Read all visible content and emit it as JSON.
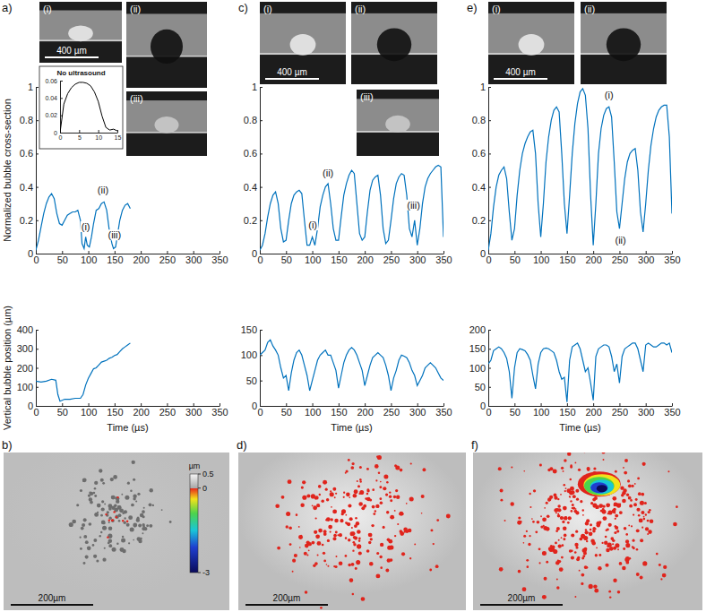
{
  "chart_data": [
    {
      "type": "line",
      "panel": "a)",
      "y_label": "Normalized bubble cross-section",
      "x": [
        0,
        5,
        10,
        15,
        20,
        25,
        30,
        35,
        40,
        45,
        50,
        55,
        60,
        65,
        70,
        75,
        80,
        85,
        88,
        92,
        95,
        98,
        102,
        106,
        110,
        115,
        120,
        125,
        130,
        135,
        140,
        145,
        148,
        152,
        156,
        160,
        165,
        170,
        175,
        180
      ],
      "series": [
        {
          "color": "#0072bd",
          "values": [
            0.02,
            0.08,
            0.16,
            0.24,
            0.3,
            0.34,
            0.36,
            0.33,
            0.24,
            0.18,
            0.17,
            0.2,
            0.23,
            0.24,
            0.25,
            0.25,
            0.26,
            0.2,
            0.06,
            0.03,
            0.1,
            0.05,
            0.04,
            0.1,
            0.18,
            0.26,
            0.27,
            0.3,
            0.31,
            0.26,
            0.14,
            0.06,
            0.03,
            0.04,
            0.12,
            0.2,
            0.26,
            0.29,
            0.3,
            0.27
          ]
        }
      ],
      "xlim": [
        0,
        350
      ],
      "xticks": [
        0,
        50,
        100,
        150,
        200,
        250,
        300,
        350
      ],
      "ylim": [
        0,
        1
      ],
      "yticks": [
        0,
        0.2,
        0.4,
        0.6,
        0.8,
        1
      ],
      "annotations": [
        {
          "text": "(i)",
          "x": 95,
          "y": 0.14
        },
        {
          "text": "(ii)",
          "x": 128,
          "y": 0.36
        },
        {
          "text": "(iii)",
          "x": 150,
          "y": 0.09
        }
      ]
    },
    {
      "type": "line",
      "y_label": "Vertical bubble position (µm)",
      "x_label": "Time (µs)",
      "x": [
        0,
        10,
        20,
        30,
        38,
        42,
        46,
        55,
        65,
        75,
        85,
        90,
        95,
        100,
        105,
        110,
        115,
        120,
        125,
        130,
        135,
        140,
        145,
        150,
        155,
        160,
        165,
        170,
        175,
        180
      ],
      "series": [
        {
          "color": "#0072bd",
          "values": [
            130,
            125,
            130,
            140,
            135,
            60,
            25,
            35,
            35,
            40,
            40,
            60,
            110,
            145,
            170,
            195,
            200,
            215,
            230,
            235,
            240,
            250,
            255,
            265,
            270,
            285,
            300,
            310,
            320,
            330
          ]
        }
      ],
      "xlim": [
        0,
        350
      ],
      "xticks": [
        0,
        50,
        100,
        150,
        200,
        250,
        300,
        350
      ],
      "ylim": [
        0,
        400
      ],
      "yticks": [
        0,
        100,
        200,
        300,
        400
      ]
    },
    {
      "type": "line",
      "panel": "c)",
      "x": [
        0,
        5,
        10,
        15,
        20,
        25,
        30,
        35,
        40,
        45,
        50,
        55,
        60,
        65,
        70,
        75,
        80,
        85,
        90,
        95,
        100,
        105,
        110,
        115,
        120,
        125,
        130,
        135,
        140,
        145,
        150,
        155,
        160,
        165,
        170,
        175,
        180,
        185,
        190,
        195,
        200,
        205,
        210,
        215,
        220,
        225,
        230,
        235,
        240,
        245,
        250,
        255,
        260,
        265,
        270,
        275,
        280,
        285,
        290,
        295,
        300,
        305,
        310,
        315,
        320,
        325,
        330,
        335,
        340,
        345,
        350
      ],
      "series": [
        {
          "color": "#0072bd",
          "values": [
            0.02,
            0.05,
            0.12,
            0.22,
            0.3,
            0.35,
            0.37,
            0.3,
            0.15,
            0.07,
            0.08,
            0.2,
            0.3,
            0.35,
            0.37,
            0.38,
            0.36,
            0.2,
            0.05,
            0.05,
            0.1,
            0.05,
            0.15,
            0.28,
            0.35,
            0.4,
            0.42,
            0.3,
            0.15,
            0.08,
            0.08,
            0.22,
            0.35,
            0.42,
            0.47,
            0.5,
            0.48,
            0.3,
            0.12,
            0.08,
            0.1,
            0.25,
            0.38,
            0.44,
            0.46,
            0.47,
            0.35,
            0.15,
            0.06,
            0.08,
            0.2,
            0.33,
            0.42,
            0.46,
            0.48,
            0.47,
            0.35,
            0.15,
            0.1,
            0.2,
            0.05,
            0.15,
            0.3,
            0.4,
            0.45,
            0.48,
            0.5,
            0.52,
            0.53,
            0.52,
            0.1
          ]
        }
      ],
      "xlim": [
        0,
        350
      ],
      "xticks": [
        0,
        50,
        100,
        150,
        200,
        250,
        300,
        350
      ],
      "ylim": [
        0,
        1
      ],
      "yticks": [
        0,
        0.2,
        0.4,
        0.6,
        0.8,
        1
      ],
      "annotations": [
        {
          "text": "(i)",
          "x": 101,
          "y": 0.15
        },
        {
          "text": "(ii)",
          "x": 130,
          "y": 0.46
        },
        {
          "text": "(iii)",
          "x": 293,
          "y": 0.27
        }
      ]
    },
    {
      "type": "line",
      "x_label": "Time (µs)",
      "x": [
        0,
        5,
        10,
        15,
        20,
        25,
        30,
        35,
        40,
        45,
        50,
        55,
        60,
        65,
        70,
        75,
        80,
        85,
        90,
        95,
        100,
        105,
        110,
        115,
        120,
        125,
        130,
        135,
        140,
        145,
        150,
        155,
        160,
        165,
        170,
        175,
        180,
        185,
        190,
        195,
        200,
        205,
        210,
        215,
        220,
        225,
        230,
        235,
        240,
        245,
        250,
        255,
        260,
        265,
        270,
        275,
        280,
        285,
        290,
        295,
        300,
        305,
        310,
        315,
        320,
        325,
        330,
        335,
        340,
        345,
        350
      ],
      "series": [
        {
          "color": "#0072bd",
          "values": [
            100,
            105,
            110,
            125,
            130,
            118,
            110,
            100,
            75,
            55,
            60,
            30,
            65,
            90,
            105,
            110,
            100,
            80,
            60,
            30,
            50,
            70,
            90,
            100,
            105,
            110,
            100,
            100,
            85,
            70,
            35,
            60,
            85,
            100,
            110,
            115,
            110,
            100,
            85,
            70,
            40,
            60,
            80,
            95,
            100,
            105,
            100,
            95,
            80,
            60,
            30,
            55,
            70,
            90,
            100,
            98,
            95,
            85,
            70,
            60,
            40,
            50,
            60,
            75,
            80,
            85,
            80,
            75,
            65,
            55,
            50
          ]
        }
      ],
      "xlim": [
        0,
        350
      ],
      "xticks": [
        0,
        50,
        100,
        150,
        200,
        250,
        300,
        350
      ],
      "ylim": [
        0,
        150
      ],
      "yticks": [
        0,
        50,
        100,
        150
      ]
    },
    {
      "type": "line",
      "panel": "e)",
      "x": [
        0,
        5,
        10,
        15,
        20,
        25,
        30,
        35,
        40,
        45,
        50,
        55,
        60,
        65,
        70,
        75,
        80,
        85,
        90,
        95,
        100,
        105,
        110,
        115,
        120,
        125,
        130,
        135,
        140,
        145,
        150,
        155,
        160,
        165,
        170,
        175,
        180,
        185,
        190,
        195,
        200,
        205,
        210,
        215,
        220,
        225,
        230,
        235,
        240,
        245,
        250,
        255,
        260,
        265,
        270,
        275,
        280,
        285,
        290,
        295,
        300,
        305,
        310,
        315,
        320,
        325,
        330,
        335,
        340,
        345,
        350
      ],
      "series": [
        {
          "color": "#0072bd",
          "values": [
            0.02,
            0.12,
            0.28,
            0.4,
            0.47,
            0.5,
            0.52,
            0.45,
            0.25,
            0.08,
            0.15,
            0.35,
            0.5,
            0.6,
            0.66,
            0.7,
            0.73,
            0.74,
            0.6,
            0.3,
            0.1,
            0.3,
            0.55,
            0.7,
            0.8,
            0.86,
            0.88,
            0.85,
            0.6,
            0.3,
            0.12,
            0.35,
            0.6,
            0.78,
            0.9,
            0.97,
            0.99,
            0.95,
            0.75,
            0.35,
            0.05,
            0.3,
            0.6,
            0.75,
            0.83,
            0.87,
            0.88,
            0.82,
            0.55,
            0.25,
            0.15,
            0.3,
            0.45,
            0.55,
            0.6,
            0.62,
            0.63,
            0.5,
            0.25,
            0.13,
            0.3,
            0.5,
            0.65,
            0.75,
            0.82,
            0.86,
            0.88,
            0.89,
            0.89,
            0.7,
            0.24
          ]
        }
      ],
      "xlim": [
        0,
        350
      ],
      "xticks": [
        0,
        50,
        100,
        150,
        200,
        250,
        300,
        350
      ],
      "ylim": [
        0,
        1
      ],
      "yticks": [
        0,
        0.2,
        0.4,
        0.6,
        0.8,
        1
      ],
      "annotations": [
        {
          "text": "(i)",
          "x": 230,
          "y": 0.93
        },
        {
          "text": "(ii)",
          "x": 252,
          "y": 0.06
        }
      ]
    },
    {
      "type": "line",
      "x_label": "Time (µs)",
      "x": [
        0,
        5,
        10,
        15,
        20,
        25,
        30,
        35,
        40,
        45,
        50,
        55,
        60,
        65,
        70,
        75,
        80,
        85,
        90,
        95,
        100,
        105,
        110,
        115,
        120,
        125,
        130,
        135,
        140,
        145,
        150,
        155,
        160,
        165,
        170,
        175,
        180,
        185,
        190,
        195,
        200,
        205,
        210,
        215,
        220,
        225,
        230,
        235,
        240,
        245,
        250,
        255,
        260,
        265,
        270,
        275,
        280,
        285,
        290,
        295,
        300,
        305,
        310,
        315,
        320,
        325,
        330,
        335,
        340,
        345,
        350
      ],
      "series": [
        {
          "color": "#0072bd",
          "values": [
            110,
            120,
            145,
            150,
            155,
            150,
            140,
            125,
            90,
            20,
            100,
            140,
            150,
            148,
            145,
            135,
            120,
            80,
            45,
            110,
            140,
            150,
            152,
            150,
            145,
            140,
            120,
            90,
            70,
            75,
            10,
            120,
            155,
            160,
            165,
            150,
            120,
            90,
            100,
            60,
            15,
            130,
            150,
            155,
            160,
            160,
            155,
            130,
            90,
            110,
            60,
            130,
            150,
            155,
            160,
            165,
            165,
            150,
            120,
            90,
            160,
            165,
            160,
            155,
            155,
            160,
            165,
            165,
            160,
            165,
            140
          ]
        }
      ],
      "xlim": [
        0,
        350
      ],
      "xticks": [
        0,
        50,
        100,
        150,
        200,
        250,
        300,
        350
      ],
      "ylim": [
        0,
        200
      ],
      "yticks": [
        0,
        50,
        100,
        150,
        200
      ]
    },
    {
      "type": "line",
      "title": "No ultrasound",
      "x": [
        0,
        1,
        2,
        3,
        4,
        5,
        6,
        7,
        8,
        9,
        10,
        11,
        12,
        13,
        14,
        15
      ],
      "series": [
        {
          "color": "#000000",
          "values": [
            0,
            0.033,
            0.045,
            0.052,
            0.056,
            0.058,
            0.058,
            0.057,
            0.054,
            0.047,
            0.036,
            0.019,
            0.006,
            0.003,
            0.004,
            0.002
          ]
        }
      ],
      "xlim": [
        0,
        15
      ],
      "xticks": [
        0,
        5,
        10,
        15
      ],
      "ylim": [
        0,
        0.06
      ],
      "yticks": [
        0,
        0.02,
        0.04,
        0.06
      ]
    }
  ],
  "photo_sets": [
    {
      "photos": [
        {
          "label": "(i)",
          "scale_bar": "400 µm"
        },
        {
          "label": "(ii)"
        },
        {
          "label": "(iii)"
        }
      ]
    },
    {
      "photos": [
        {
          "label": "(i)",
          "scale_bar": "400 µm"
        },
        {
          "label": "(ii)"
        },
        {
          "label": "(iii)"
        }
      ]
    },
    {
      "photos": [
        {
          "label": "(i)",
          "scale_bar": "400 µm"
        },
        {
          "label": "(ii)"
        }
      ]
    }
  ],
  "maps": [
    {
      "panel": "b)",
      "scale_bar": "200µm",
      "colorbar": {
        "unit": "µm",
        "range": [
          -3,
          0.5
        ],
        "ticks": [
          0.5,
          0,
          -3
        ]
      }
    },
    {
      "panel": "d)",
      "scale_bar": "200µm"
    },
    {
      "panel": "f)",
      "scale_bar": "200µm"
    }
  ]
}
